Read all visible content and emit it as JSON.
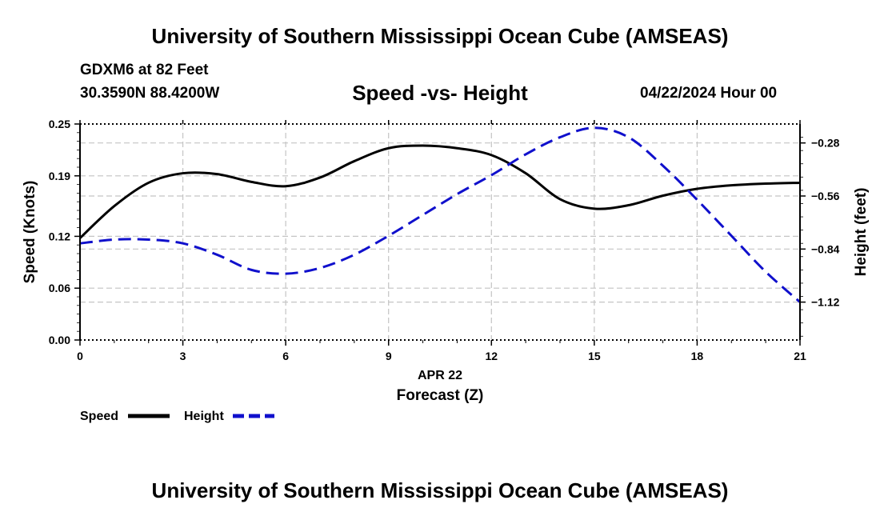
{
  "header": {
    "title": "University of Southern Mississippi Ocean Cube (AMSEAS)",
    "station": "GDXM6 at 82 Feet",
    "coords": "30.3590N  88.4200W",
    "subtitle": "Speed -vs- Height",
    "datetime": "04/22/2024 Hour 00"
  },
  "footer": {
    "title": "University of Southern Mississippi Ocean Cube (AMSEAS)"
  },
  "chart_data": {
    "type": "line",
    "title": "Speed -vs- Height",
    "x": [
      0,
      1,
      2,
      3,
      4,
      5,
      6,
      7,
      8,
      9,
      10,
      11,
      12,
      13,
      14,
      15,
      16,
      17,
      18,
      19,
      20,
      21
    ],
    "xticks": [
      0,
      3,
      6,
      9,
      12,
      15,
      18,
      21
    ],
    "xlim": [
      0,
      21
    ],
    "xlabel_date": "APR 22",
    "xlabel": "Forecast (Z)",
    "ylabel_left": "Speed (Knots)",
    "ylabel_right": "Height (feet)",
    "ylim_left": [
      0,
      0.25
    ],
    "yticks_left": [
      0.0,
      0.06,
      0.12,
      0.19,
      0.25
    ],
    "ytick_labels_left": [
      "0.00",
      "0.06",
      "0.12",
      "0.19",
      "0.25"
    ],
    "ylim_right": [
      -1.32,
      -0.18
    ],
    "yticks_right": [
      -1.12,
      -0.84,
      -0.56,
      -0.28
    ],
    "ytick_labels_right": [
      "−1.12",
      "−0.84",
      "−0.56",
      "−0.28"
    ],
    "grid": true,
    "legend_position": "bottom-left",
    "series": [
      {
        "name": "Speed",
        "axis": "left",
        "color": "#000000",
        "style": "solid",
        "values": [
          0.118,
          0.155,
          0.182,
          0.193,
          0.192,
          0.183,
          0.178,
          0.188,
          0.207,
          0.222,
          0.225,
          0.222,
          0.214,
          0.193,
          0.163,
          0.152,
          0.156,
          0.167,
          0.175,
          0.179,
          0.181,
          0.182
        ]
      },
      {
        "name": "Height",
        "axis": "right",
        "color": "#1010cc",
        "style": "dashed",
        "values": [
          -0.81,
          -0.79,
          -0.79,
          -0.81,
          -0.87,
          -0.95,
          -0.97,
          -0.94,
          -0.87,
          -0.77,
          -0.66,
          -0.55,
          -0.45,
          -0.34,
          -0.25,
          -0.2,
          -0.25,
          -0.4,
          -0.58,
          -0.77,
          -0.96,
          -1.12
        ]
      }
    ]
  }
}
